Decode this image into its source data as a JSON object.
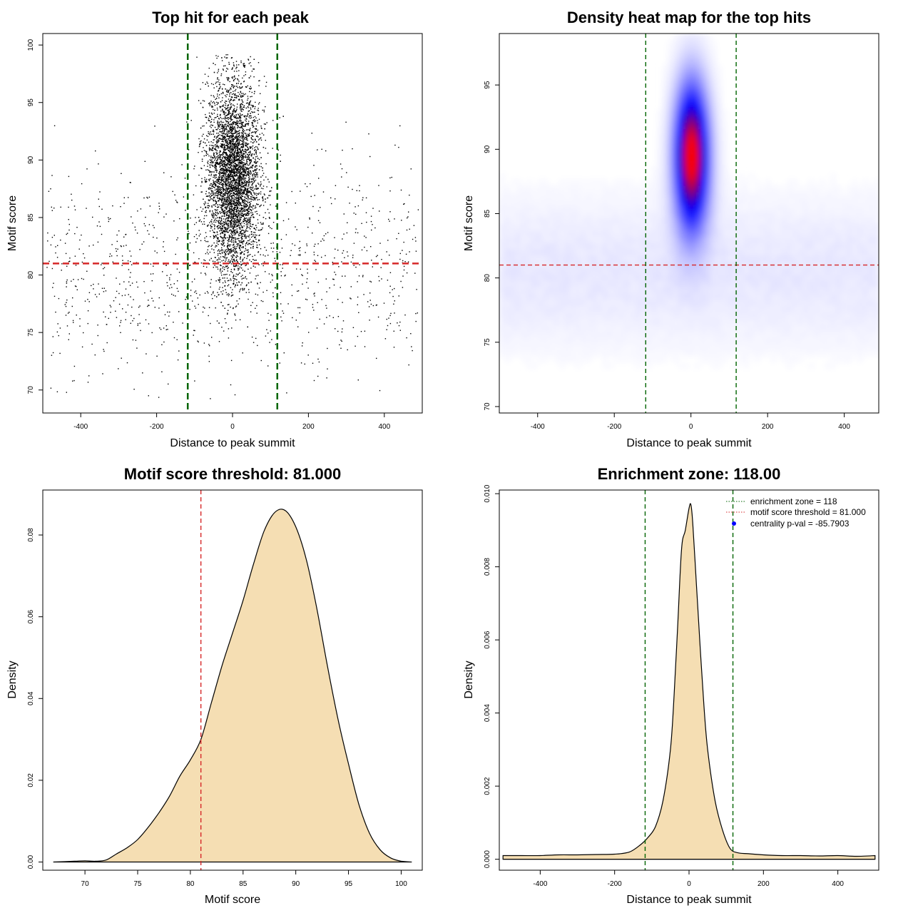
{
  "chart_data": [
    {
      "type": "scatter",
      "title": "Top hit for each peak",
      "xlabel": "Distance to peak summit",
      "ylabel": "Motif score",
      "xlim": [
        -500,
        500
      ],
      "ylim": [
        68,
        101
      ],
      "xticks": [
        -400,
        -200,
        0,
        200,
        400
      ],
      "yticks": [
        70,
        75,
        80,
        85,
        90,
        95,
        100
      ],
      "point_color": "#000000",
      "core_cluster": {
        "x_mean": 0,
        "x_sd": 35,
        "y_mean": 88.5,
        "y_sd": 4.2,
        "y_range": [
          72,
          99.2
        ],
        "n_points": 5200
      },
      "background_points": {
        "x_range": [
          -490,
          490
        ],
        "y_range": [
          69,
          97
        ],
        "n_points": 950
      },
      "hlines": [
        {
          "y": 81,
          "color": "#d62728",
          "style": "dashed"
        }
      ],
      "vlines": [
        {
          "x": -118,
          "color": "#006400",
          "style": "dashed"
        },
        {
          "x": 118,
          "color": "#006400",
          "style": "dashed"
        }
      ]
    },
    {
      "type": "heatmap",
      "title": "Density heat map for the top hits",
      "xlabel": "Distance to peak summit",
      "ylabel": "Motif score",
      "xlim": [
        -500,
        490
      ],
      "ylim": [
        69.5,
        99
      ],
      "xticks": [
        -400,
        -200,
        0,
        200,
        400
      ],
      "yticks": [
        70,
        75,
        80,
        85,
        90,
        95
      ],
      "colors": {
        "low": "#ffffff",
        "mid": "#0000ff",
        "high": "#ff0000"
      },
      "peak": {
        "x": 2,
        "y": 89.5
      },
      "hlines": [
        {
          "y": 81,
          "color": "#d62728",
          "style": "dashed"
        }
      ],
      "vlines": [
        {
          "x": -118,
          "color": "#006400",
          "style": "dashed"
        },
        {
          "x": 118,
          "color": "#006400",
          "style": "dashed"
        }
      ]
    },
    {
      "type": "area",
      "title": "Motif score threshold: 81.000",
      "xlabel": "Motif score",
      "ylabel": "Density",
      "xlim": [
        66,
        102
      ],
      "ylim": [
        -0.002,
        0.091
      ],
      "xticks": [
        70,
        75,
        80,
        85,
        90,
        95,
        100
      ],
      "yticks": [
        0.0,
        0.02,
        0.04,
        0.06,
        0.08
      ],
      "ytick_labels": [
        "0.00",
        "0.02",
        "0.04",
        "0.06",
        "0.08"
      ],
      "fill_color": "#f5deb3",
      "x": [
        67,
        69,
        70,
        71,
        72,
        73,
        74,
        75,
        76,
        77,
        78,
        79,
        80,
        81,
        82,
        83,
        84,
        85,
        86,
        87,
        88,
        89,
        90,
        91,
        92,
        93,
        94,
        95,
        96,
        97,
        98,
        99,
        100,
        101
      ],
      "values": [
        0.0,
        0.0002,
        0.0003,
        0.0002,
        0.0005,
        0.002,
        0.0035,
        0.0055,
        0.0085,
        0.012,
        0.016,
        0.021,
        0.025,
        0.03,
        0.039,
        0.048,
        0.056,
        0.064,
        0.073,
        0.081,
        0.0855,
        0.086,
        0.082,
        0.074,
        0.062,
        0.048,
        0.035,
        0.024,
        0.014,
        0.007,
        0.003,
        0.001,
        0.0002,
        0.0
      ],
      "vlines": [
        {
          "x": 81,
          "color": "#d62728",
          "style": "dashed"
        }
      ]
    },
    {
      "type": "area",
      "title": "Enrichment zone: 118.00",
      "xlabel": "Distance to peak summit",
      "ylabel": "Density",
      "xlim": [
        -510,
        510
      ],
      "ylim": [
        -0.0003,
        0.0101
      ],
      "xticks": [
        -400,
        -200,
        0,
        200,
        400
      ],
      "yticks": [
        0.0,
        0.002,
        0.004,
        0.006,
        0.008,
        0.01
      ],
      "ytick_labels": [
        "0.000",
        "0.002",
        "0.004",
        "0.006",
        "0.008",
        "0.010"
      ],
      "fill_color": "#f5deb3",
      "x": [
        -500,
        -450,
        -400,
        -350,
        -300,
        -250,
        -200,
        -160,
        -130,
        -110,
        -90,
        -70,
        -50,
        -40,
        -30,
        -20,
        -10,
        0,
        5,
        10,
        20,
        30,
        40,
        50,
        70,
        90,
        110,
        130,
        160,
        200,
        250,
        300,
        350,
        400,
        450,
        500
      ],
      "values": [
        0.0001,
        0.0001,
        0.0001,
        0.00012,
        0.00012,
        0.00013,
        0.00014,
        0.0002,
        0.0004,
        0.0006,
        0.0009,
        0.0016,
        0.003,
        0.0045,
        0.0065,
        0.0085,
        0.009,
        0.0096,
        0.0097,
        0.0092,
        0.0075,
        0.0058,
        0.0042,
        0.003,
        0.0016,
        0.0008,
        0.0003,
        0.00018,
        0.00015,
        0.00012,
        0.0001,
        0.0001,
        9e-05,
        0.0001,
        8e-05,
        0.0001
      ],
      "vlines": [
        {
          "x": -118,
          "color": "#006400",
          "style": "dashed"
        },
        {
          "x": 118,
          "color": "#006400",
          "style": "dashed"
        }
      ],
      "legend": {
        "placement": "top-right",
        "entries": [
          {
            "label": "enrichment zone = 118",
            "color": "#006400",
            "marker": "dotted-line"
          },
          {
            "label": "motif score threshold = 81.000",
            "color": "#d62728",
            "marker": "dotted-line"
          },
          {
            "label": "centrality p-val = -85.7903",
            "color": "#0000ff",
            "marker": "dot"
          }
        ]
      }
    }
  ]
}
